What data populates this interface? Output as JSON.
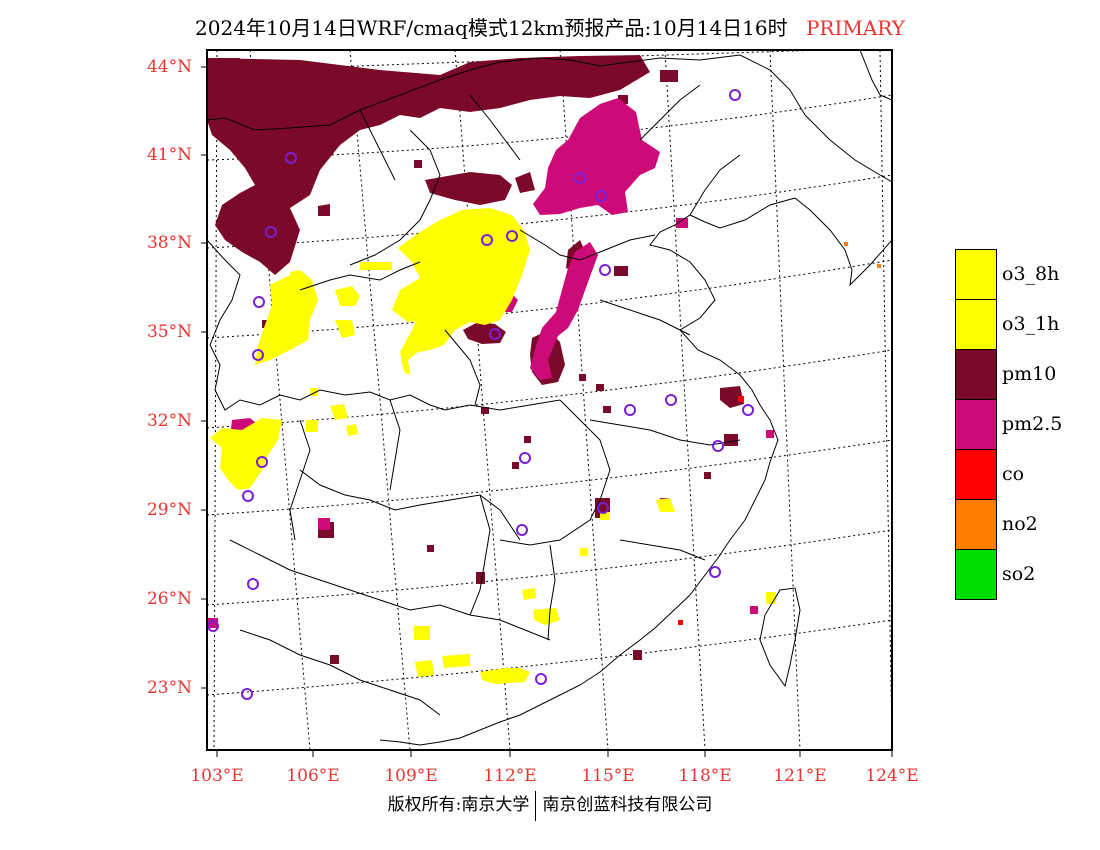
{
  "title": {
    "text": "2024年10月14日WRF/cmaq模式12km预报产品:10月14日16时",
    "tag": "PRIMARY"
  },
  "axes": {
    "lat_labels": [
      "44°N",
      "41°N",
      "38°N",
      "35°N",
      "32°N",
      "29°N",
      "26°N",
      "23°N"
    ],
    "lon_labels": [
      "103°E",
      "106°E",
      "109°E",
      "112°E",
      "115°E",
      "118°E",
      "121°E",
      "124°E"
    ]
  },
  "legend": [
    {
      "label": "o3_8h",
      "color": "#ffff00"
    },
    {
      "label": "o3_1h",
      "color": "#ffff00"
    },
    {
      "label": "pm10",
      "color": "#7b0a2a"
    },
    {
      "label": "pm2.5",
      "color": "#cc0a78"
    },
    {
      "label": "co",
      "color": "#ff0000"
    },
    {
      "label": "no2",
      "color": "#ff8000"
    },
    {
      "label": "so2",
      "color": "#00dd00"
    }
  ],
  "footer": {
    "left": "版权所有:南京大学",
    "right": "南京创蓝科技有限公司"
  },
  "colors": {
    "label_red": "#e8342f",
    "station_marker": "#7a1fd6"
  }
}
